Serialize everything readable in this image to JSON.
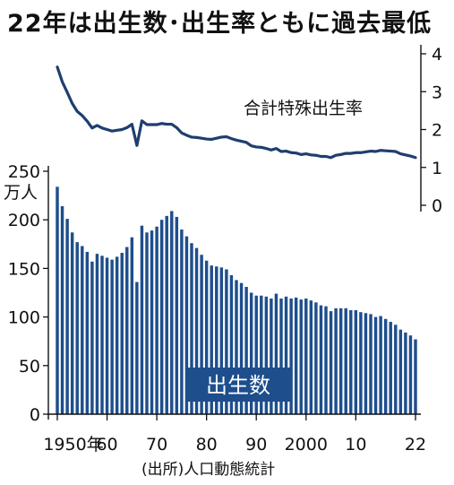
{
  "title": "22年は出生数･出生率ともに過去最低",
  "source": "(出所)人口動態統計",
  "colors": {
    "bar": "#1e4e8c",
    "line": "#1e3f6e",
    "text": "#111111",
    "label_bg": "#1e4e8c"
  },
  "chart_data": [
    {
      "type": "line",
      "label": "合計特殊出生率",
      "ylim": [
        0,
        4
      ],
      "yticks": [
        "0",
        "1",
        "2",
        "3",
        "4"
      ],
      "x": [
        1950,
        1951,
        1952,
        1953,
        1954,
        1955,
        1956,
        1957,
        1958,
        1959,
        1960,
        1961,
        1962,
        1963,
        1964,
        1965,
        1966,
        1967,
        1968,
        1969,
        1970,
        1971,
        1972,
        1973,
        1974,
        1975,
        1976,
        1977,
        1978,
        1979,
        1980,
        1981,
        1982,
        1983,
        1984,
        1985,
        1986,
        1987,
        1988,
        1989,
        1990,
        1991,
        1992,
        1993,
        1994,
        1995,
        1996,
        1997,
        1998,
        1999,
        2000,
        2001,
        2002,
        2003,
        2004,
        2005,
        2006,
        2007,
        2008,
        2009,
        2010,
        2011,
        2012,
        2013,
        2014,
        2015,
        2016,
        2017,
        2018,
        2019,
        2020,
        2021,
        2022
      ],
      "values": [
        3.65,
        3.26,
        2.98,
        2.69,
        2.48,
        2.37,
        2.22,
        2.04,
        2.11,
        2.04,
        2.0,
        1.96,
        1.98,
        2.0,
        2.05,
        2.14,
        1.58,
        2.23,
        2.13,
        2.13,
        2.13,
        2.16,
        2.14,
        2.14,
        2.05,
        1.91,
        1.85,
        1.8,
        1.79,
        1.77,
        1.75,
        1.74,
        1.77,
        1.8,
        1.81,
        1.76,
        1.72,
        1.69,
        1.66,
        1.57,
        1.54,
        1.53,
        1.5,
        1.46,
        1.5,
        1.42,
        1.43,
        1.39,
        1.38,
        1.34,
        1.36,
        1.33,
        1.32,
        1.29,
        1.29,
        1.26,
        1.32,
        1.34,
        1.37,
        1.37,
        1.39,
        1.39,
        1.41,
        1.43,
        1.42,
        1.45,
        1.44,
        1.43,
        1.42,
        1.36,
        1.33,
        1.3,
        1.26
      ]
    },
    {
      "type": "bar",
      "label": "出生数",
      "unit": "万人",
      "ylim": [
        0,
        250
      ],
      "yticks": [
        "0",
        "50",
        "100",
        "150",
        "200",
        "250"
      ],
      "x": [
        1950,
        1951,
        1952,
        1953,
        1954,
        1955,
        1956,
        1957,
        1958,
        1959,
        1960,
        1961,
        1962,
        1963,
        1964,
        1965,
        1966,
        1967,
        1968,
        1969,
        1970,
        1971,
        1972,
        1973,
        1974,
        1975,
        1976,
        1977,
        1978,
        1979,
        1980,
        1981,
        1982,
        1983,
        1984,
        1985,
        1986,
        1987,
        1988,
        1989,
        1990,
        1991,
        1992,
        1993,
        1994,
        1995,
        1996,
        1997,
        1998,
        1999,
        2000,
        2001,
        2002,
        2003,
        2004,
        2005,
        2006,
        2007,
        2008,
        2009,
        2010,
        2011,
        2012,
        2013,
        2014,
        2015,
        2016,
        2017,
        2018,
        2019,
        2020,
        2021,
        2022
      ],
      "values": [
        234,
        214,
        201,
        187,
        177,
        173,
        167,
        157,
        165,
        163,
        161,
        159,
        162,
        166,
        172,
        182,
        136,
        194,
        187,
        189,
        193,
        200,
        204,
        209,
        203,
        190,
        183,
        176,
        171,
        164,
        158,
        153,
        152,
        151,
        149,
        143,
        138,
        135,
        131,
        125,
        122,
        122,
        121,
        119,
        124,
        119,
        121,
        119,
        120,
        118,
        119,
        117,
        115,
        112,
        111,
        106,
        109,
        109,
        109,
        107,
        107,
        105,
        104,
        103,
        100,
        101,
        98,
        95,
        92,
        87,
        84,
        81,
        77
      ]
    }
  ],
  "x_ticks": [
    "1950年",
    "60",
    "70",
    "80",
    "90",
    "2000",
    "10",
    "22"
  ]
}
